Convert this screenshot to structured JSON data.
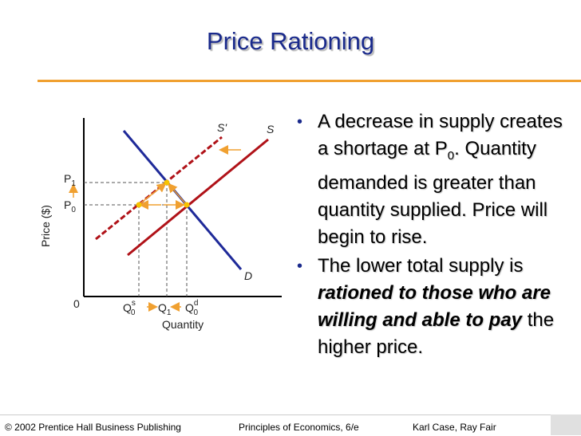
{
  "slide": {
    "title": "Price Rationing"
  },
  "diagram": {
    "y_axis_title": "Price ($)",
    "x_axis_title": "Quantity",
    "origin_label": "0",
    "p1": {
      "base": "P",
      "sub": "1"
    },
    "p0": {
      "base": "P",
      "sub": "0"
    },
    "qs": {
      "base": "Q",
      "sub": "0",
      "sup": "s"
    },
    "q1": {
      "base": "Q",
      "sub": "1"
    },
    "qd": {
      "base": "Q",
      "sub": "0",
      "sup": "d"
    },
    "supply_label": "S",
    "new_supply_label": "S'",
    "demand_label": "D",
    "colors": {
      "demand": "#1f2a99",
      "supply": "#b01218",
      "shift_arrows": "#f0a030",
      "equilibrium_points": "#f7c300"
    }
  },
  "bullets": [
    {
      "parts": [
        {
          "text": "A decrease in supply creates a shortage at P",
          "style": "normal"
        },
        {
          "text": "0",
          "style": "sub"
        },
        {
          "text": ".  Quantity demanded is greater than quantity supplied.  Price will begin to rise.",
          "style": "normal"
        }
      ]
    },
    {
      "parts": [
        {
          "text": "The lower total supply is ",
          "style": "normal"
        },
        {
          "text": "rationed to those who are willing and able to pay",
          "style": "em"
        },
        {
          "text": " the higher price.",
          "style": "normal"
        }
      ]
    }
  ],
  "footer": {
    "publisher": "© 2002 Prentice Hall Business Publishing",
    "book": "Principles of Economics, 6/e",
    "authors": "Karl Case, Ray Fair"
  }
}
